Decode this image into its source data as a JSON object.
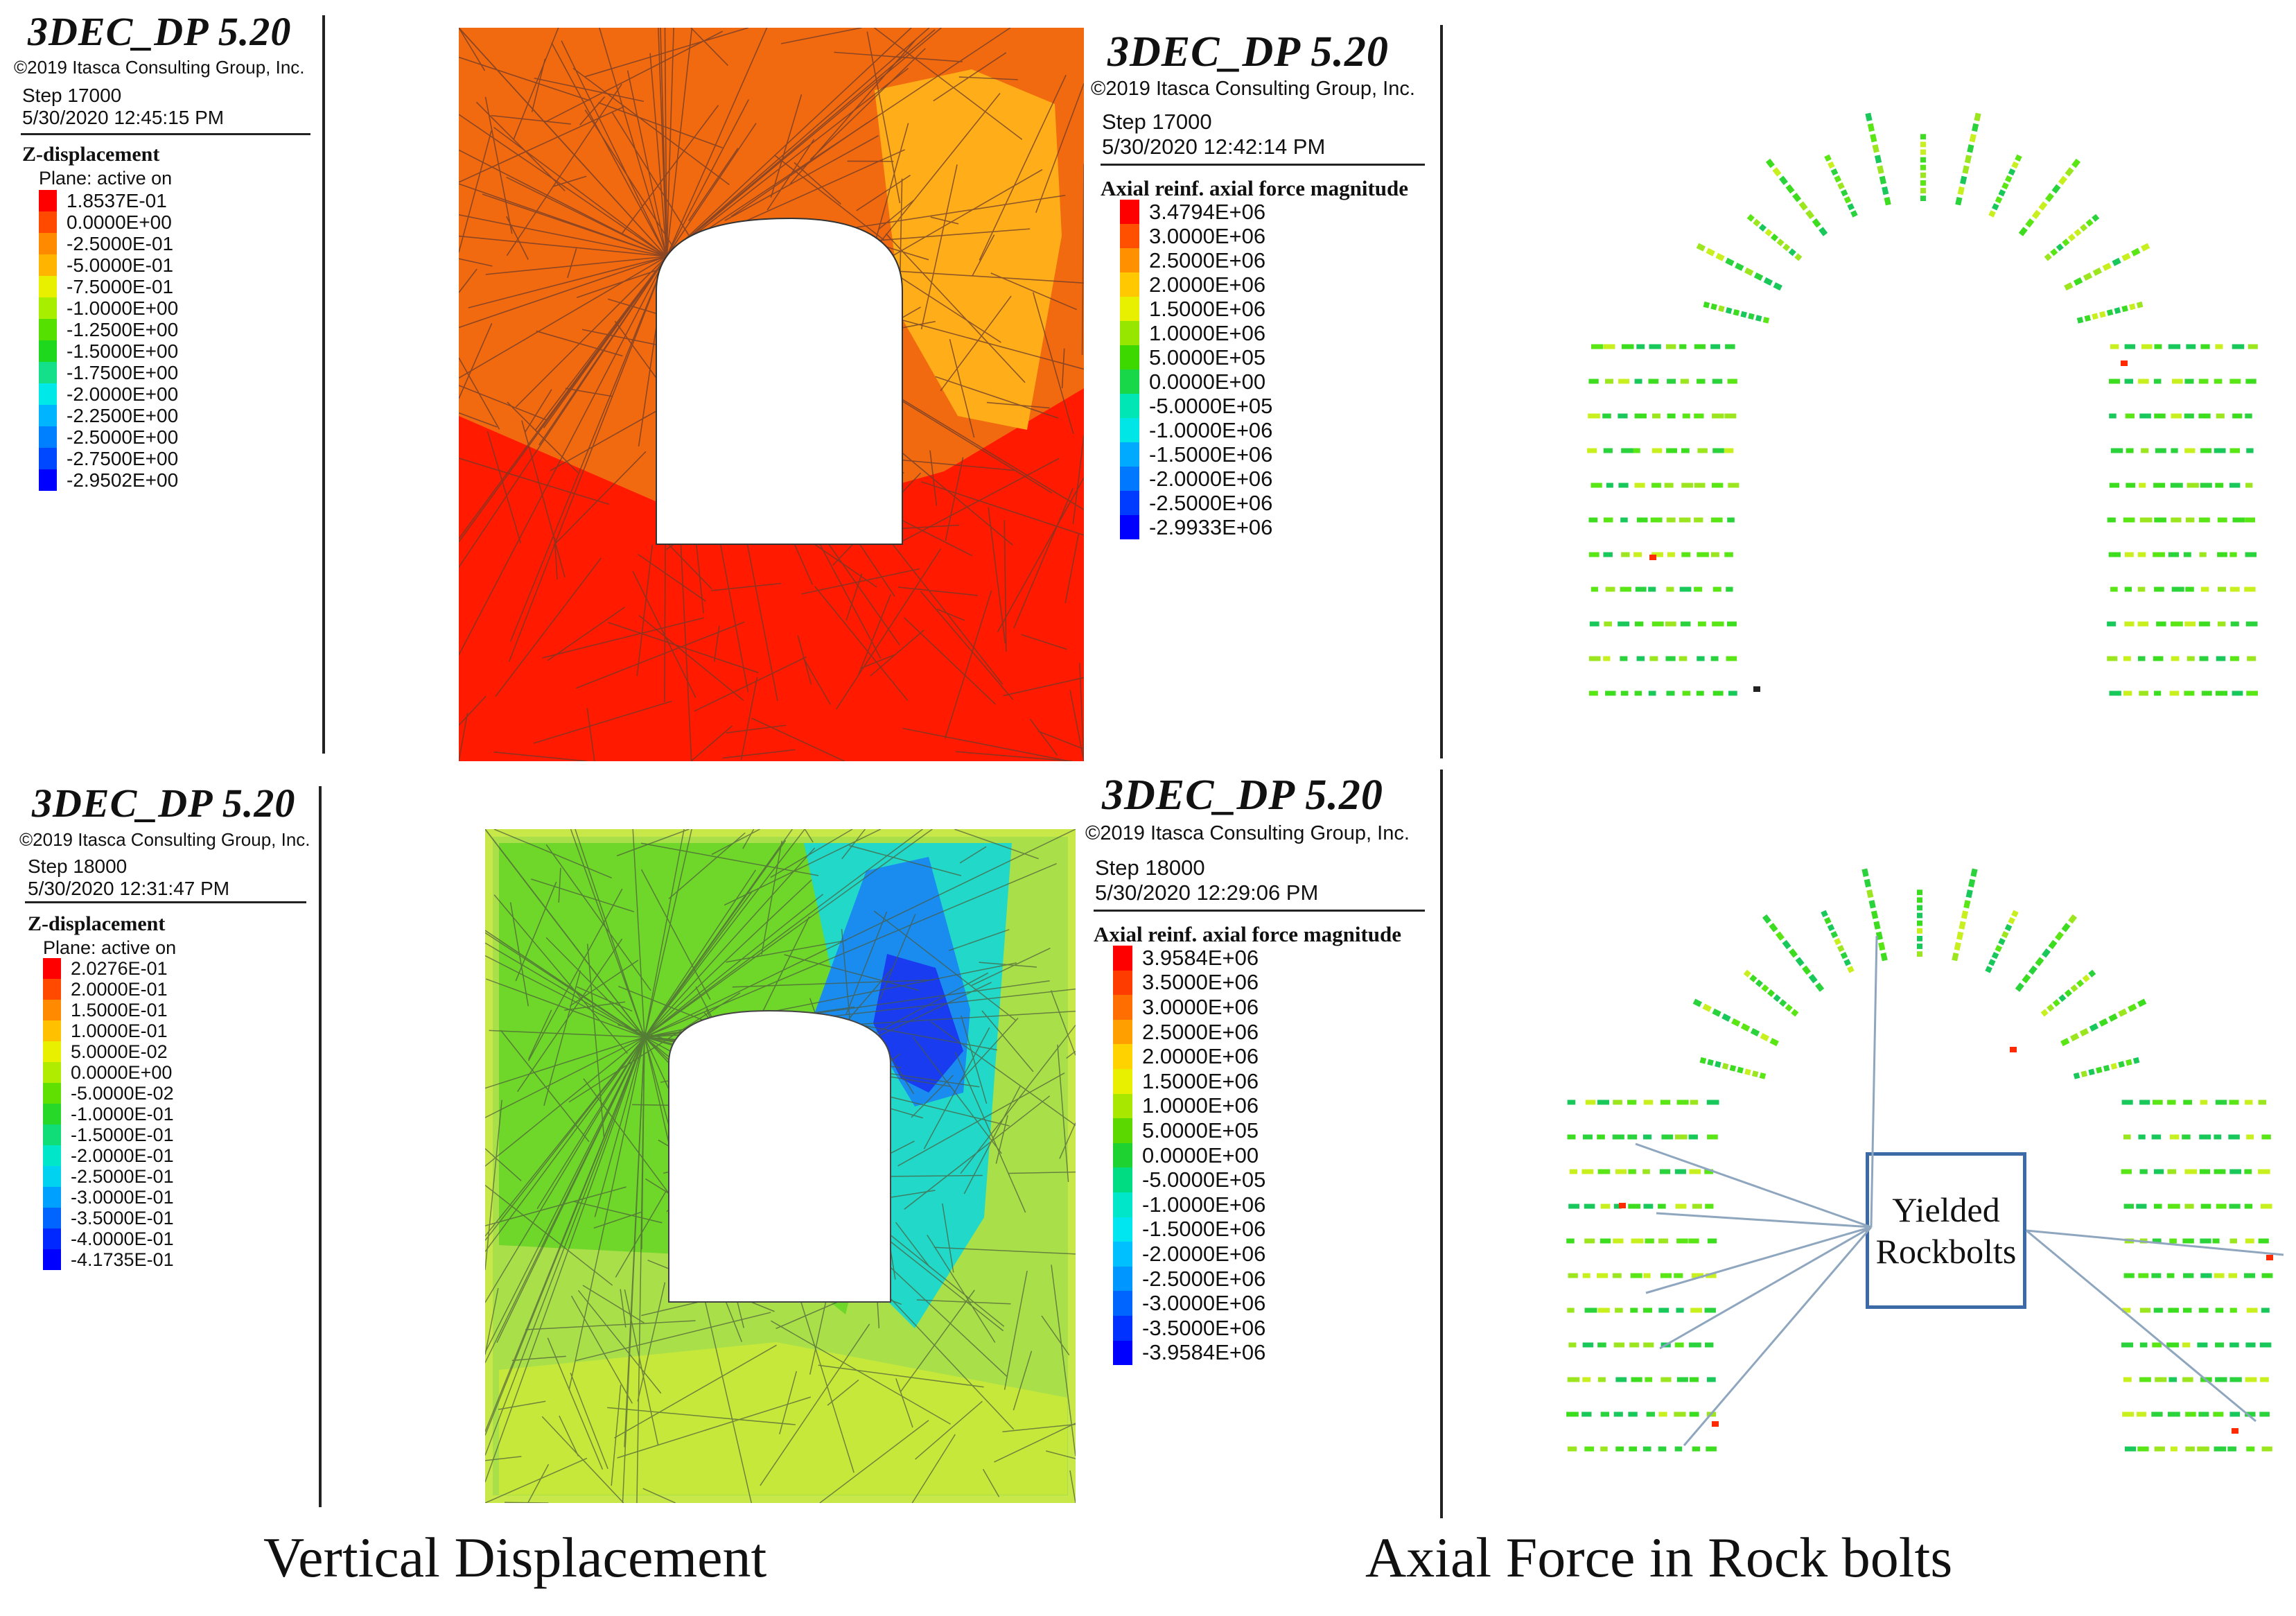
{
  "panels": [
    {
      "brand": "3DEC_DP 5.20",
      "copyright": "©2019 Itasca Consulting Group, Inc.",
      "step": "Step 17000",
      "timestamp": "5/30/2020 12:45:15 PM",
      "legend_title": "Z-displacement",
      "legend_subtitle": "Plane: active on",
      "legend": [
        {
          "value": "1.8537E-01",
          "color": "#ff0000"
        },
        {
          "value": "0.0000E+00",
          "color": "#ff4a00"
        },
        {
          "value": "-2.5000E-01",
          "color": "#ff8a00"
        },
        {
          "value": "-5.0000E-01",
          "color": "#ffb400"
        },
        {
          "value": "-7.5000E-01",
          "color": "#e8f000"
        },
        {
          "value": "-1.0000E+00",
          "color": "#a8ee00"
        },
        {
          "value": "-1.2500E+00",
          "color": "#55e000"
        },
        {
          "value": "-1.5000E+00",
          "color": "#1ed81e"
        },
        {
          "value": "-1.7500E+00",
          "color": "#14e08a"
        },
        {
          "value": "-2.0000E+00",
          "color": "#00e8e8"
        },
        {
          "value": "-2.2500E+00",
          "color": "#00b4ff"
        },
        {
          "value": "-2.5000E+00",
          "color": "#0080ff"
        },
        {
          "value": "-2.7500E+00",
          "color": "#0048ff"
        },
        {
          "value": "-2.9502E+00",
          "color": "#0000ff"
        }
      ]
    },
    {
      "brand": "3DEC_DP 5.20",
      "copyright": "©2019 Itasca Consulting Group, Inc.",
      "step": "Step 17000",
      "timestamp": "5/30/2020 12:42:14 PM",
      "legend_title": "Axial reinf. axial force magnitude",
      "legend": [
        {
          "value": "3.4794E+06",
          "color": "#ff0000"
        },
        {
          "value": "3.0000E+06",
          "color": "#ff5000"
        },
        {
          "value": "2.5000E+06",
          "color": "#ff9000"
        },
        {
          "value": "2.0000E+06",
          "color": "#ffc800"
        },
        {
          "value": "1.5000E+06",
          "color": "#e8f000"
        },
        {
          "value": "1.0000E+06",
          "color": "#96e600"
        },
        {
          "value": "5.0000E+05",
          "color": "#3cd800"
        },
        {
          "value": "0.0000E+00",
          "color": "#18d84a"
        },
        {
          "value": "-5.0000E+05",
          "color": "#00e6b4"
        },
        {
          "value": "-1.0000E+06",
          "color": "#00e6e6"
        },
        {
          "value": "-1.5000E+06",
          "color": "#00aaff"
        },
        {
          "value": "-2.0000E+06",
          "color": "#0078ff"
        },
        {
          "value": "-2.5000E+06",
          "color": "#003cff"
        },
        {
          "value": "-2.9933E+06",
          "color": "#0000ff"
        }
      ]
    },
    {
      "brand": "3DEC_DP 5.20",
      "copyright": "©2019 Itasca Consulting Group, Inc.",
      "step": "Step 18000",
      "timestamp": "5/30/2020 12:31:47 PM",
      "legend_title": "Z-displacement",
      "legend_subtitle": "Plane: active on",
      "legend": [
        {
          "value": "2.0276E-01",
          "color": "#ff0000"
        },
        {
          "value": "2.0000E-01",
          "color": "#ff4a00"
        },
        {
          "value": "1.5000E-01",
          "color": "#ff8a00"
        },
        {
          "value": "1.0000E-01",
          "color": "#ffc000"
        },
        {
          "value": "5.0000E-02",
          "color": "#e8f000"
        },
        {
          "value": "0.0000E+00",
          "color": "#b0ec00"
        },
        {
          "value": "-5.0000E-02",
          "color": "#60e000"
        },
        {
          "value": "-1.0000E-01",
          "color": "#28d828"
        },
        {
          "value": "-1.5000E-01",
          "color": "#10dc78"
        },
        {
          "value": "-2.0000E-01",
          "color": "#00e6c8"
        },
        {
          "value": "-2.5000E-01",
          "color": "#00d2f0"
        },
        {
          "value": "-3.0000E-01",
          "color": "#00a0ff"
        },
        {
          "value": "-3.5000E-01",
          "color": "#0064ff"
        },
        {
          "value": "-4.0000E-01",
          "color": "#0028ff"
        },
        {
          "value": "-4.1735E-01",
          "color": "#0000ff"
        }
      ]
    },
    {
      "brand": "3DEC_DP 5.20",
      "copyright": "©2019 Itasca Consulting Group, Inc.",
      "step": "Step 18000",
      "timestamp": "5/30/2020 12:29:06 PM",
      "legend_title": "Axial reinf. axial force magnitude",
      "legend": [
        {
          "value": "3.9584E+06",
          "color": "#ff0000"
        },
        {
          "value": "3.5000E+06",
          "color": "#ff3c00"
        },
        {
          "value": "3.0000E+06",
          "color": "#ff6e00"
        },
        {
          "value": "2.5000E+06",
          "color": "#ffa000"
        },
        {
          "value": "2.0000E+06",
          "color": "#ffd200"
        },
        {
          "value": "1.5000E+06",
          "color": "#e8f000"
        },
        {
          "value": "1.0000E+06",
          "color": "#a8e800"
        },
        {
          "value": "5.0000E+05",
          "color": "#5ad800"
        },
        {
          "value": "0.0000E+00",
          "color": "#1ed232"
        },
        {
          "value": "-5.0000E+05",
          "color": "#00dc82"
        },
        {
          "value": "-1.0000E+06",
          "color": "#00e6c8"
        },
        {
          "value": "-1.5000E+06",
          "color": "#00e6f0"
        },
        {
          "value": "-2.0000E+06",
          "color": "#00c0ff"
        },
        {
          "value": "-2.5000E+06",
          "color": "#0096ff"
        },
        {
          "value": "-3.0000E+06",
          "color": "#0064ff"
        },
        {
          "value": "-3.5000E+06",
          "color": "#0032ff"
        },
        {
          "value": "-3.9584E+06",
          "color": "#0000ff"
        }
      ]
    }
  ],
  "callout": {
    "line1": "Yielded",
    "line2": "Rockbolts",
    "border_color": "#3c6aa6"
  },
  "captions": {
    "left": "Vertical Displacement",
    "right": "Axial Force in Rock bolts"
  },
  "colors": {
    "model_top_red": "#ff1a00",
    "model_top_orange": "#f26a10",
    "model_bottom_green": "#8fde2a",
    "model_bottom_blue": "#1a5cf0",
    "mesh_line": "#555555",
    "bolt_green": "#3cdc1e"
  }
}
